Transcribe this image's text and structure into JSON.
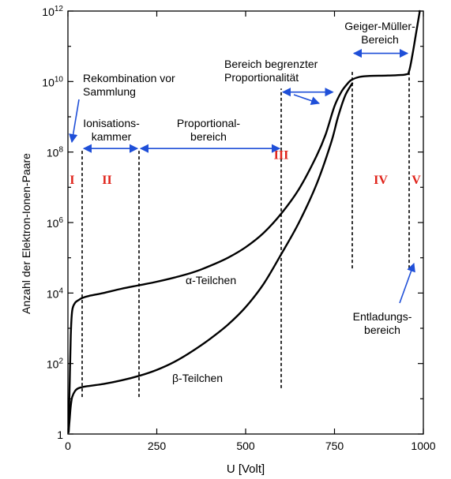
{
  "chart_data": {
    "type": "line",
    "xlabel": "U [Volt]",
    "ylabel": "Anzahl der Elektron-Ionen-Paare",
    "xlim": [
      0,
      1000
    ],
    "ylim_log10": [
      0,
      12
    ],
    "y_scale": "log",
    "x_ticks": [
      {
        "value": 0,
        "label": "0"
      },
      {
        "value": 250,
        "label": "250"
      },
      {
        "value": 500,
        "label": "500"
      },
      {
        "value": 750,
        "label": "750"
      },
      {
        "value": 1000,
        "label": "1000"
      }
    ],
    "y_ticks": [
      {
        "exp": 0,
        "base": "1",
        "sup": ""
      },
      {
        "exp": 2,
        "base": "10",
        "sup": "2"
      },
      {
        "exp": 4,
        "base": "10",
        "sup": "4"
      },
      {
        "exp": 6,
        "base": "10",
        "sup": "6"
      },
      {
        "exp": 8,
        "base": "10",
        "sup": "8"
      },
      {
        "exp": 10,
        "base": "10",
        "sup": "10"
      },
      {
        "exp": 12,
        "base": "10",
        "sup": "12"
      }
    ],
    "series": [
      {
        "name": "α-Teilchen",
        "x": [
          2,
          5,
          8,
          12,
          20,
          30,
          40,
          60,
          100,
          150,
          200,
          250,
          300,
          350,
          400,
          450,
          500,
          550,
          600,
          650,
          700,
          725,
          750,
          770,
          790,
          800,
          820,
          850,
          900,
          950,
          960,
          970,
          980,
          990
        ],
        "log10_y": [
          0.1,
          1.5,
          2.8,
          3.5,
          3.72,
          3.8,
          3.86,
          3.92,
          4.0,
          4.12,
          4.22,
          4.32,
          4.44,
          4.58,
          4.77,
          5.0,
          5.3,
          5.7,
          6.25,
          6.95,
          7.9,
          8.5,
          9.3,
          9.72,
          9.98,
          10.06,
          10.13,
          10.16,
          10.17,
          10.2,
          10.3,
          10.8,
          11.4,
          12.0
        ]
      },
      {
        "name": "β-Teilchen",
        "x": [
          2,
          5,
          8,
          12,
          20,
          30,
          50,
          100,
          150,
          200,
          250,
          300,
          350,
          400,
          450,
          500,
          550,
          600,
          650,
          700,
          740,
          760,
          780,
          800
        ],
        "log10_y": [
          0.05,
          0.45,
          0.8,
          1.05,
          1.22,
          1.3,
          1.35,
          1.42,
          1.52,
          1.65,
          1.82,
          2.05,
          2.35,
          2.7,
          3.1,
          3.6,
          4.25,
          5.1,
          6.0,
          7.1,
          8.25,
          9.0,
          9.6,
          9.95
        ]
      }
    ],
    "series_labels": [
      {
        "text": "α-Teilchen",
        "x": 335,
        "log10_y": 4.4
      },
      {
        "text": "β-Teilchen",
        "x": 375,
        "log10_y": 1.55
      }
    ],
    "region_boundaries": [
      {
        "x": 40,
        "from": 1.05,
        "to": 8.1
      },
      {
        "x": 200,
        "from": 1.05,
        "to": 8.1
      },
      {
        "x": 600,
        "from": 1.3,
        "to": 9.8
      },
      {
        "x": 800,
        "from": 4.7,
        "to": 10.3
      },
      {
        "x": 960,
        "from": 4.7,
        "to": 10.3
      }
    ],
    "region_numerals": [
      {
        "label": "I",
        "x": 12,
        "log10_y": 7.1
      },
      {
        "label": "II",
        "x": 110,
        "log10_y": 7.1
      },
      {
        "label": "III",
        "x": 600,
        "log10_y": 7.8
      },
      {
        "label": "IV",
        "x": 880,
        "log10_y": 7.1
      },
      {
        "label": "V",
        "x": 980,
        "log10_y": 7.1
      }
    ],
    "annotations": [
      {
        "lines": [
          "Rekombination vor",
          "Sammlung"
        ]
      },
      {
        "lines": [
          "Ionisations-",
          "kammer"
        ]
      },
      {
        "lines": [
          "Proportional-",
          "bereich"
        ]
      },
      {
        "lines": [
          "Bereich begrenzter",
          "Proportionalität"
        ]
      },
      {
        "lines": [
          "Geiger-Müller-",
          "Bereich"
        ]
      },
      {
        "lines": [
          "Entladungs-",
          "bereich"
        ]
      }
    ],
    "arrow_color": "#1f4fd8",
    "numeral_color": "#e0241b",
    "grid": false,
    "legend": "none"
  }
}
